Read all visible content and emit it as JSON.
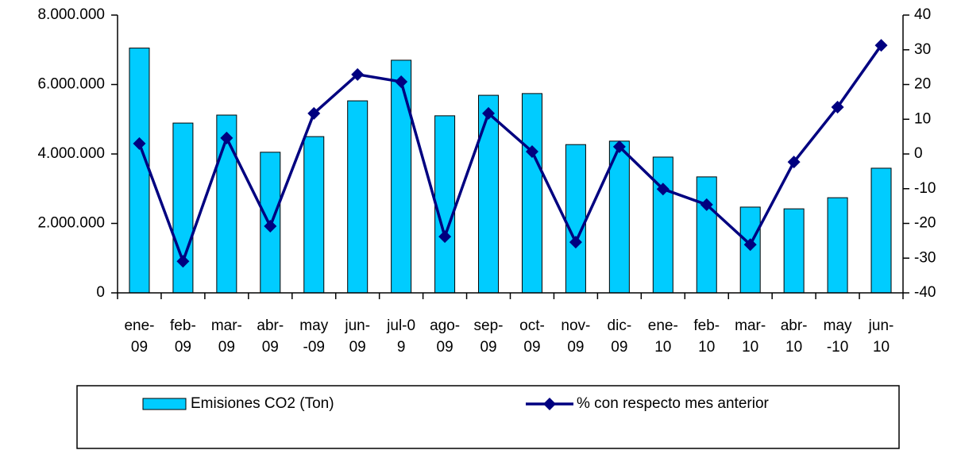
{
  "chart_data": {
    "type": "combo",
    "categories": [
      "ene-09",
      "feb-09",
      "mar-09",
      "abr-09",
      "may-09",
      "jun-09",
      "jul-09",
      "ago-09",
      "sep-09",
      "oct-09",
      "nov-09",
      "dic-09",
      "ene-10",
      "feb-10",
      "mar-10",
      "abr-10",
      "may-10",
      "jun-10"
    ],
    "series": [
      {
        "name": "Emisiones CO2 (Ton)",
        "type": "bar",
        "color": "#00ccff",
        "values": [
          7050000,
          4890000,
          5120000,
          4050000,
          4500000,
          5530000,
          6700000,
          5100000,
          5690000,
          5740000,
          4270000,
          4370000,
          3910000,
          3340000,
          2470000,
          2420000,
          2740000,
          3590000
        ]
      },
      {
        "name": "% con respecto mes anterior",
        "type": "line",
        "color": "#000080",
        "axis": "y2",
        "values": [
          3.0,
          -30.9,
          4.6,
          -20.8,
          11.7,
          22.9,
          20.8,
          -23.8,
          11.7,
          0.7,
          -25.4,
          2.1,
          -10.1,
          -14.6,
          -26.1,
          -2.3,
          13.5,
          31.3
        ]
      }
    ],
    "ylim": [
      0,
      8000000
    ],
    "yticks": [
      0,
      {
        "value": 2000000,
        "label": "2.000.000"
      },
      {
        "value": 4000000,
        "label": "4.000.000"
      },
      {
        "value": 6000000,
        "label": "6.000.000"
      },
      {
        "value": 8000000,
        "label": "8.000.000"
      }
    ],
    "y2lim": [
      -40,
      40
    ],
    "y2ticks": [
      -40,
      -30,
      -20,
      -10,
      0,
      10,
      20,
      30,
      40
    ],
    "legend": "bottom"
  }
}
